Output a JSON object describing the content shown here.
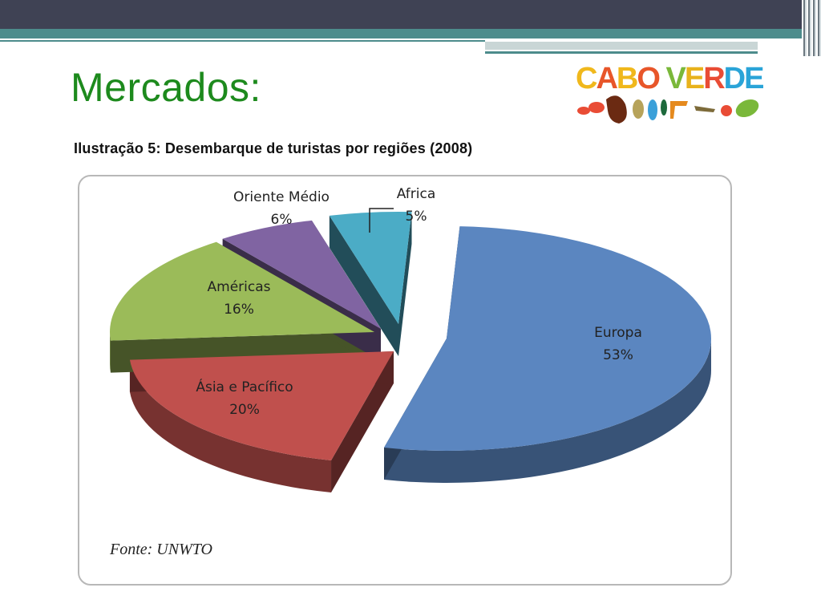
{
  "slide": {
    "title": "Mercados:"
  },
  "logo": {
    "text": "CABO VERDE"
  },
  "figure": {
    "caption": "Ilustração 5: Desembarque de turistas por regiões (2008)",
    "source": "Fonte: UNWTO"
  },
  "chart_data": {
    "type": "pie",
    "title": "",
    "slices": [
      {
        "label": "Europa",
        "value": 53,
        "value_label": "53%",
        "color": "#5b86c0"
      },
      {
        "label": "Ásia e Pacífico",
        "value": 20,
        "value_label": "20%",
        "color": "#c0504d"
      },
      {
        "label": "Américas",
        "value": 16,
        "value_label": "16%",
        "color": "#9bbb59"
      },
      {
        "label": "Oriente Médio",
        "value": 6,
        "value_label": "6%",
        "color": "#8064a2"
      },
      {
        "label": "Africa",
        "value": 5,
        "value_label": "5%",
        "color": "#4bacc6"
      }
    ],
    "legend": "none",
    "style": "3d exploded"
  }
}
